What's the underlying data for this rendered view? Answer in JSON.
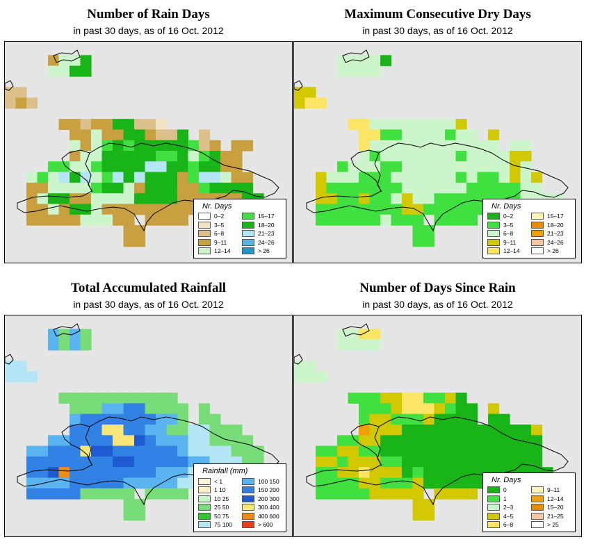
{
  "colors": {
    "background": "#e6e6e6",
    "outline": "#000000"
  },
  "panels": [
    {
      "id": "rain_days",
      "title": "Number of Rain Days",
      "subtitle": "in past 30 days, as of  16 Oct. 2012",
      "legend": {
        "title": "Nr. Days",
        "items": [
          {
            "label": "0–2",
            "color": "#ffffff"
          },
          {
            "label": "3–5",
            "color": "#f2e4c4"
          },
          {
            "label": "6–8",
            "color": "#dcc08c"
          },
          {
            "label": "9–11",
            "color": "#c8a040"
          },
          {
            "label": "12–14",
            "color": "#ccf5cc"
          },
          {
            "label": "15–17",
            "color": "#40e040"
          },
          {
            "label": "18–20",
            "color": "#18b418"
          },
          {
            "label": "21–23",
            "color": "#b4e6f5"
          },
          {
            "label": "24–26",
            "color": "#5ab4e6"
          },
          {
            "label": "> 26",
            "color": "#1e96c8"
          }
        ]
      },
      "grid": [
        "..........................",
        "....3446..................",
        "....4466..................",
        "..........................",
        "22........................",
        "232.......................",
        "..........................",
        ".....3323366221...........",
        "......33433663226.2.......",
        "......43456566666523.33...",
        "......3446666655645633....",
        "....554456666776656633....",
        "..454767457676663577433...",
        "..334444566436663356666...",
        "..3466334444666633333366..",
        "..33436643333333333333333.",
        "..3333344433.3333.........",
        "...........33.............",
        "...........33.............",
        ".......................... "
      ]
    },
    {
      "id": "dry_days",
      "title": "Maximum Consecutive Dry Days",
      "subtitle": "in past 30 days, as of  16 Oct. 2012",
      "legend": {
        "title": "Nr. Days",
        "items": [
          {
            "label": "0–2",
            "color": "#18b418"
          },
          {
            "label": "3–5",
            "color": "#40e040"
          },
          {
            "label": "6–8",
            "color": "#ccf5cc"
          },
          {
            "label": "9–11",
            "color": "#d2c800"
          },
          {
            "label": "12–14",
            "color": "#fae664"
          },
          {
            "label": "15–17",
            "color": "#fff5b4"
          },
          {
            "label": "18–20",
            "color": "#e68c00"
          },
          {
            "label": "21–23",
            "color": "#f0a000"
          },
          {
            "label": "24–26",
            "color": "#fac8a0"
          },
          {
            "label": "> 26",
            "color": "#ffffff"
          }
        ]
      },
      "grid": [
        "..........................",
        "....22220.................",
        "....2222..................",
        "..........................",
        "33........................",
        "344.......................",
        "..........................",
        ".....44222222223..........",
        "......44112222122.3.......",
        "......4222222222222.22....",
        "......2122222221222233....",
        "....122211222222222232....",
        "..322211122222212112323...",
        "..311111112222221111122...",
        "..33113112322111111112222.",
        "..11111111331111111.22222.",
        "..1111112111.1111.........",
        "...........11.............",
        "...........11.............",
        ".........................."
      ]
    },
    {
      "id": "total_rain",
      "title": "Total Accumulated Rainfall",
      "subtitle": "in past 30 days, as of  16 Oct. 2012",
      "legend": {
        "title": "Rainfall (mm)",
        "items": [
          {
            "label": "< 1",
            "color": "#fff5dc"
          },
          {
            "label": "1   10",
            "color": "#fff0c8"
          },
          {
            "label": "10   25",
            "color": "#c8f5c8"
          },
          {
            "label": "25   50",
            "color": "#78dc78"
          },
          {
            "label": "50   75",
            "color": "#32c832"
          },
          {
            "label": "75   100",
            "color": "#b4e6f5"
          },
          {
            "label": "100   150",
            "color": "#5ab4f0"
          },
          {
            "label": "150   200",
            "color": "#3282e6"
          },
          {
            "label": "200   300",
            "color": "#1e5ad2"
          },
          {
            "label": "300   400",
            "color": "#fae678"
          },
          {
            "label": "400   600",
            "color": "#f08c14"
          },
          {
            "label": "> 600",
            "color": "#f03c14"
          }
        ]
      },
      "grid": [
        "..........................",
        "....6363..................",
        "....6363..................",
        "..........................",
        "55........................",
        "555.......................",
        "..........................",
        ".....33333333333..........",
        "......33366773333.3.......",
        "......67777777663.33......",
        "......7779977663355333....",
        "....6677779987666553333...",
        "..6677798877777765555333..",
        "..7777777788777776655533..",
        "..778A77777777666555555533",
        "..6666777776666655555553..",
        "..7777733333.3333.........",
        "...........33.............",
        "...........33.............",
        ".........................."
      ]
    },
    {
      "id": "days_since_rain",
      "title": "Number of Days Since Rain",
      "subtitle": "in past 30 days, as of  16 Oct. 2012",
      "legend": {
        "title": "Nr. Days",
        "items": [
          {
            "label": "0",
            "color": "#18b418"
          },
          {
            "label": "1",
            "color": "#40e040"
          },
          {
            "label": "2–3",
            "color": "#ccf5cc"
          },
          {
            "label": "4–5",
            "color": "#d2c800"
          },
          {
            "label": "6–8",
            "color": "#fae664"
          },
          {
            "label": "9–11",
            "color": "#fff5b4"
          },
          {
            "label": "12–14",
            "color": "#f0a000"
          },
          {
            "label": "15–20",
            "color": "#e68c00"
          },
          {
            "label": "21–25",
            "color": "#fac8a0"
          },
          {
            "label": "> 25",
            "color": "#ffffff"
          }
        ]
      },
      "grid": [
        "..........................",
        "....2244..................",
        "....2222..................",
        "..........................",
        "22........................",
        "222.......................",
        "..........................",
        ".....11133441130..........",
        "......11134443100.3.......",
        "......13311130000.00......",
        "......63330000000000003...",
        "....1133000000000000000...",
        "..113311000000000000000...",
        "..331333110000000000000...",
        "..1133433301000000000000..",
        "..11113311130000000000000.",
        "..1111133333.3333.........",
        "...........33.............",
        "...........33.............",
        ".........................."
      ]
    }
  ]
}
